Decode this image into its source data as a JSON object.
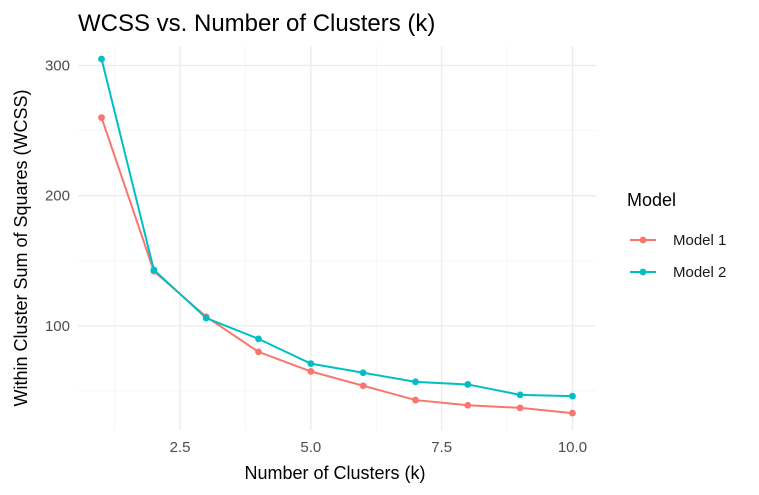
{
  "chart_data": {
    "type": "line",
    "title": "WCSS vs. Number of Clusters (k)",
    "xlabel": "Number of Clusters (k)",
    "ylabel": "Within Cluster Sum of Squares (WCSS)",
    "xlim": [
      0.55,
      10.45
    ],
    "ylim": [
      20,
      315
    ],
    "x_ticks": [
      2.5,
      5.0,
      7.5,
      10.0
    ],
    "x_tick_labels": [
      "2.5",
      "5.0",
      "7.5",
      "10.0"
    ],
    "y_ticks": [
      100,
      200,
      300
    ],
    "y_tick_labels": [
      "100",
      "200",
      "300"
    ],
    "grid": true,
    "legend": {
      "title": "Model",
      "position": "right"
    },
    "x": [
      1,
      2,
      3,
      4,
      5,
      6,
      7,
      8,
      9,
      10
    ],
    "series": [
      {
        "name": "Model 1",
        "color": "#F8766D",
        "values": [
          260,
          142,
          107,
          80,
          65,
          54,
          43,
          39,
          37,
          33
        ]
      },
      {
        "name": "Model 2",
        "color": "#00BFC4",
        "values": [
          305,
          143,
          106,
          90,
          71,
          64,
          57,
          55,
          47,
          46
        ]
      }
    ]
  }
}
